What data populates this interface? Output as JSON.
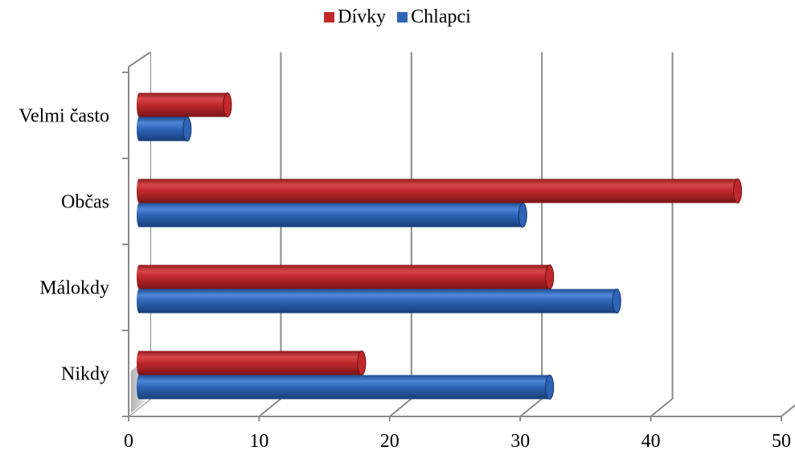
{
  "chart_data": {
    "type": "bar",
    "orientation": "horizontal",
    "categories": [
      "Velmi často",
      "Občas",
      "Málokdy",
      "Nikdy"
    ],
    "series": [
      {
        "name": "Dívky",
        "values": [
          7,
          45,
          31,
          17
        ],
        "color": "#C0282B"
      },
      {
        "name": "Chlapci",
        "values": [
          4,
          29,
          36,
          31
        ],
        "color": "#2E64B5"
      }
    ],
    "xlim": [
      0,
      50
    ],
    "xticks": [
      "0",
      "10",
      "20",
      "30",
      "40",
      "50"
    ],
    "legend_position": "top",
    "grid": true,
    "style": "3d-cylinder"
  }
}
